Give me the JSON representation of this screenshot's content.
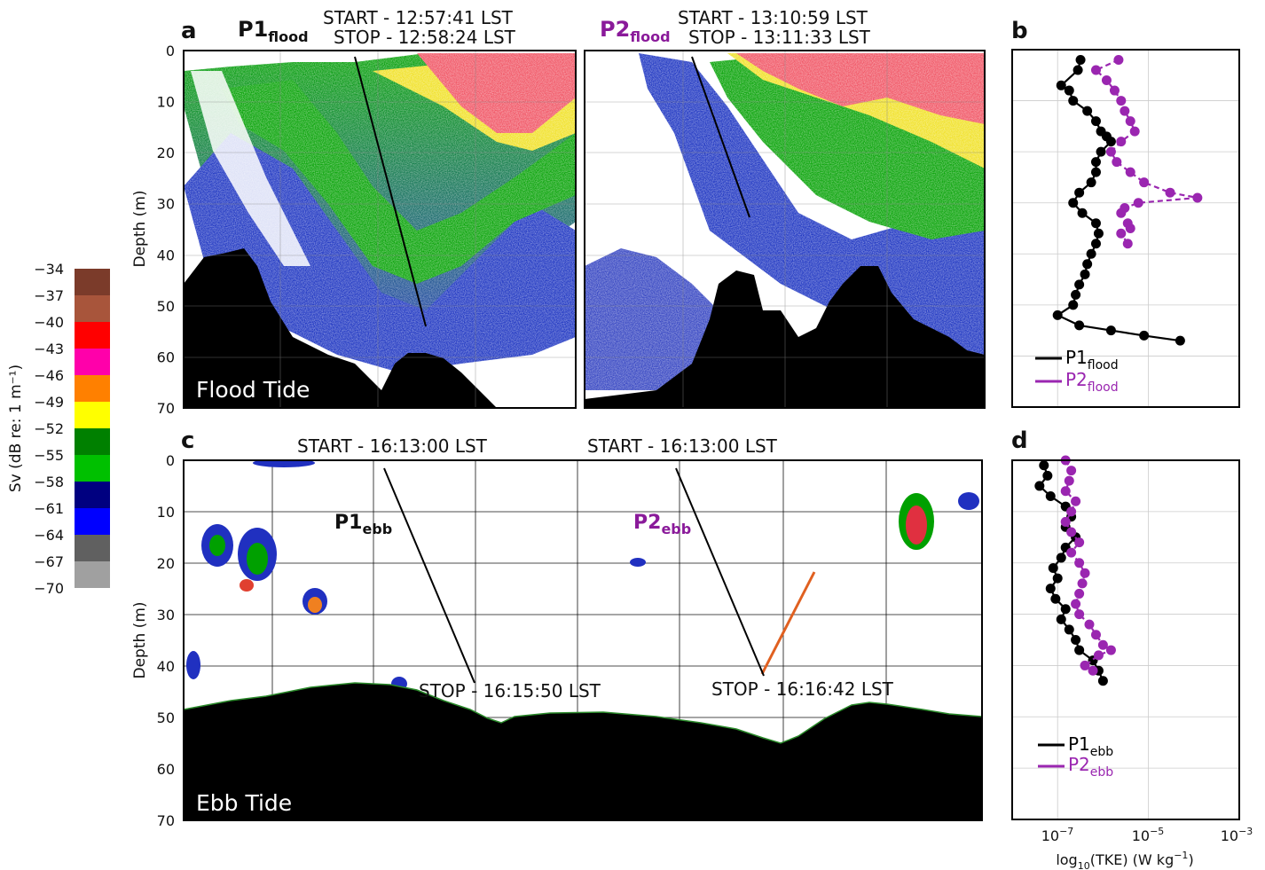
{
  "colorbar": {
    "label": "Sv (dB re: 1 m⁻¹)",
    "ticks": [
      "−34",
      "−37",
      "−40",
      "−43",
      "−46",
      "−49",
      "−52",
      "−55",
      "−58",
      "−61",
      "−64",
      "−67",
      "−70"
    ],
    "colors": [
      "#7b3b2a",
      "#a8553b",
      "#ff0000",
      "#ff00aa",
      "#ff8000",
      "#ffff00",
      "#008000",
      "#00c000",
      "#000080",
      "#0000ff",
      "#606060",
      "#a0a0a0"
    ]
  },
  "panels": {
    "a": {
      "letter": "a",
      "p1_name": "P1",
      "p1_sub": "flood",
      "p1_start": "START - 12:57:41 LST",
      "p1_stop": "STOP - 12:58:24 LST",
      "p2_name": "P2",
      "p2_sub": "flood",
      "p2_start": "START - 13:10:59 LST",
      "p2_stop": "STOP - 13:11:33 LST",
      "tide_label": "Flood Tide",
      "ylabel": "Depth (m)",
      "yticks": [
        "0",
        "10",
        "20",
        "30",
        "40",
        "50",
        "60",
        "70"
      ]
    },
    "b": {
      "letter": "b",
      "legend": [
        {
          "name": "P1",
          "sub": "flood",
          "color": "#000000"
        },
        {
          "name": "P2",
          "sub": "flood",
          "color": "#9a26b0"
        }
      ]
    },
    "c": {
      "letter": "c",
      "p1_name": "P1",
      "p1_sub": "ebb",
      "p1_start": "START - 16:13:00 LST",
      "p1_stop": "STOP - 16:15:50 LST",
      "p2_name": "P2",
      "p2_sub": "ebb",
      "p2_start": "START - 16:13:00 LST",
      "p2_stop": "STOP - 16:16:42 LST",
      "tide_label": "Ebb Tide",
      "ylabel": "Depth (m)",
      "yticks": [
        "0",
        "10",
        "20",
        "30",
        "40",
        "50",
        "60",
        "70"
      ]
    },
    "d": {
      "letter": "d",
      "legend": [
        {
          "name": "P1",
          "sub": "ebb",
          "color": "#000000"
        },
        {
          "name": "P2",
          "sub": "ebb",
          "color": "#9a26b0"
        }
      ]
    }
  },
  "tke_axis": {
    "xlabel_pre": "log",
    "xlabel_sub": "10",
    "xlabel_post": "(TKE) (W kg",
    "xlabel_sup": "−1",
    "xlabel_end": ")",
    "ticks": [
      {
        "base": "10",
        "exp": "−7"
      },
      {
        "base": "10",
        "exp": "−5"
      },
      {
        "base": "10",
        "exp": "−3"
      }
    ]
  },
  "chart_data": [
    {
      "panel": "b",
      "type": "line",
      "x_scale": "log10",
      "xlim": [
        1e-08,
        0.001
      ],
      "ylim": [
        0,
        70
      ],
      "series": [
        {
          "name": "P1flood",
          "color": "#000000",
          "points": [
            [
              3.2e-07,
              2
            ],
            [
              2.8e-07,
              4
            ],
            [
              1.2e-07,
              7
            ],
            [
              1.8e-07,
              8
            ],
            [
              2.2e-07,
              10
            ],
            [
              4.5e-07,
              12
            ],
            [
              7e-07,
              14
            ],
            [
              9e-07,
              16
            ],
            [
              1.2e-06,
              17
            ],
            [
              1.5e-06,
              18
            ],
            [
              9e-07,
              20
            ],
            [
              7e-07,
              22
            ],
            [
              7e-07,
              24
            ],
            [
              5.5e-07,
              26
            ],
            [
              3e-07,
              28
            ],
            [
              2.2e-07,
              30
            ],
            [
              3.5e-07,
              32
            ],
            [
              7e-07,
              34
            ],
            [
              8e-07,
              36
            ],
            [
              7e-07,
              38
            ],
            [
              5.5e-07,
              40
            ],
            [
              4.5e-07,
              42
            ],
            [
              4e-07,
              44
            ],
            [
              3e-07,
              46
            ],
            [
              2.5e-07,
              48
            ],
            [
              2.2e-07,
              50
            ],
            [
              1e-07,
              52
            ],
            [
              3e-07,
              54
            ],
            [
              1.5e-06,
              55
            ],
            [
              8e-06,
              56
            ],
            [
              5e-05,
              57
            ]
          ]
        },
        {
          "name": "P2flood",
          "color": "#9a26b0",
          "points": [
            [
              2.2e-06,
              2
            ],
            [
              7e-07,
              4
            ],
            [
              1.2e-06,
              6
            ],
            [
              1.8e-06,
              8
            ],
            [
              2.5e-06,
              10
            ],
            [
              3e-06,
              12
            ],
            [
              4e-06,
              14
            ],
            [
              5e-06,
              16
            ],
            [
              2.5e-06,
              18
            ],
            [
              1.5e-06,
              20
            ],
            [
              2e-06,
              22
            ],
            [
              4e-06,
              24
            ],
            [
              8e-06,
              26
            ],
            [
              3e-05,
              28
            ],
            [
              0.00012,
              29
            ],
            [
              6e-06,
              30
            ],
            [
              3e-06,
              31
            ],
            [
              2.5e-06,
              32
            ],
            [
              3.5e-06,
              34
            ],
            [
              4e-06,
              35
            ],
            [
              2.5e-06,
              36
            ],
            [
              3.5e-06,
              38
            ]
          ]
        }
      ]
    },
    {
      "panel": "d",
      "type": "line",
      "x_scale": "log10",
      "xlim": [
        1e-08,
        0.001
      ],
      "ylim": [
        0,
        70
      ],
      "series": [
        {
          "name": "P1ebb",
          "color": "#000000",
          "points": [
            [
              5e-08,
              1
            ],
            [
              6e-08,
              3
            ],
            [
              4e-08,
              5
            ],
            [
              7e-08,
              7
            ],
            [
              1.5e-07,
              9
            ],
            [
              2e-07,
              11
            ],
            [
              1.5e-07,
              13
            ],
            [
              2.5e-07,
              15
            ],
            [
              1.5e-07,
              17
            ],
            [
              1.2e-07,
              19
            ],
            [
              8e-08,
              21
            ],
            [
              1e-07,
              23
            ],
            [
              7e-08,
              25
            ],
            [
              9e-08,
              27
            ],
            [
              1.5e-07,
              29
            ],
            [
              1.2e-07,
              31
            ],
            [
              1.8e-07,
              33
            ],
            [
              2.5e-07,
              35
            ],
            [
              3e-07,
              37
            ],
            [
              6e-07,
              39
            ],
            [
              8e-07,
              41
            ],
            [
              1e-06,
              43
            ]
          ]
        },
        {
          "name": "P2ebb",
          "color": "#9a26b0",
          "points": [
            [
              1.5e-07,
              0
            ],
            [
              2e-07,
              2
            ],
            [
              1.8e-07,
              4
            ],
            [
              1.5e-07,
              6
            ],
            [
              2.5e-07,
              8
            ],
            [
              2e-07,
              10
            ],
            [
              1.5e-07,
              12
            ],
            [
              2e-07,
              14
            ],
            [
              3e-07,
              16
            ],
            [
              2e-07,
              18
            ],
            [
              3e-07,
              20
            ],
            [
              4e-07,
              22
            ],
            [
              3.5e-07,
              24
            ],
            [
              3e-07,
              26
            ],
            [
              2.5e-07,
              28
            ],
            [
              3e-07,
              30
            ],
            [
              5e-07,
              32
            ],
            [
              7e-07,
              34
            ],
            [
              1e-06,
              36
            ],
            [
              1.5e-06,
              37
            ],
            [
              8e-07,
              38
            ],
            [
              4e-07,
              40
            ],
            [
              6e-07,
              41
            ]
          ]
        }
      ]
    }
  ]
}
